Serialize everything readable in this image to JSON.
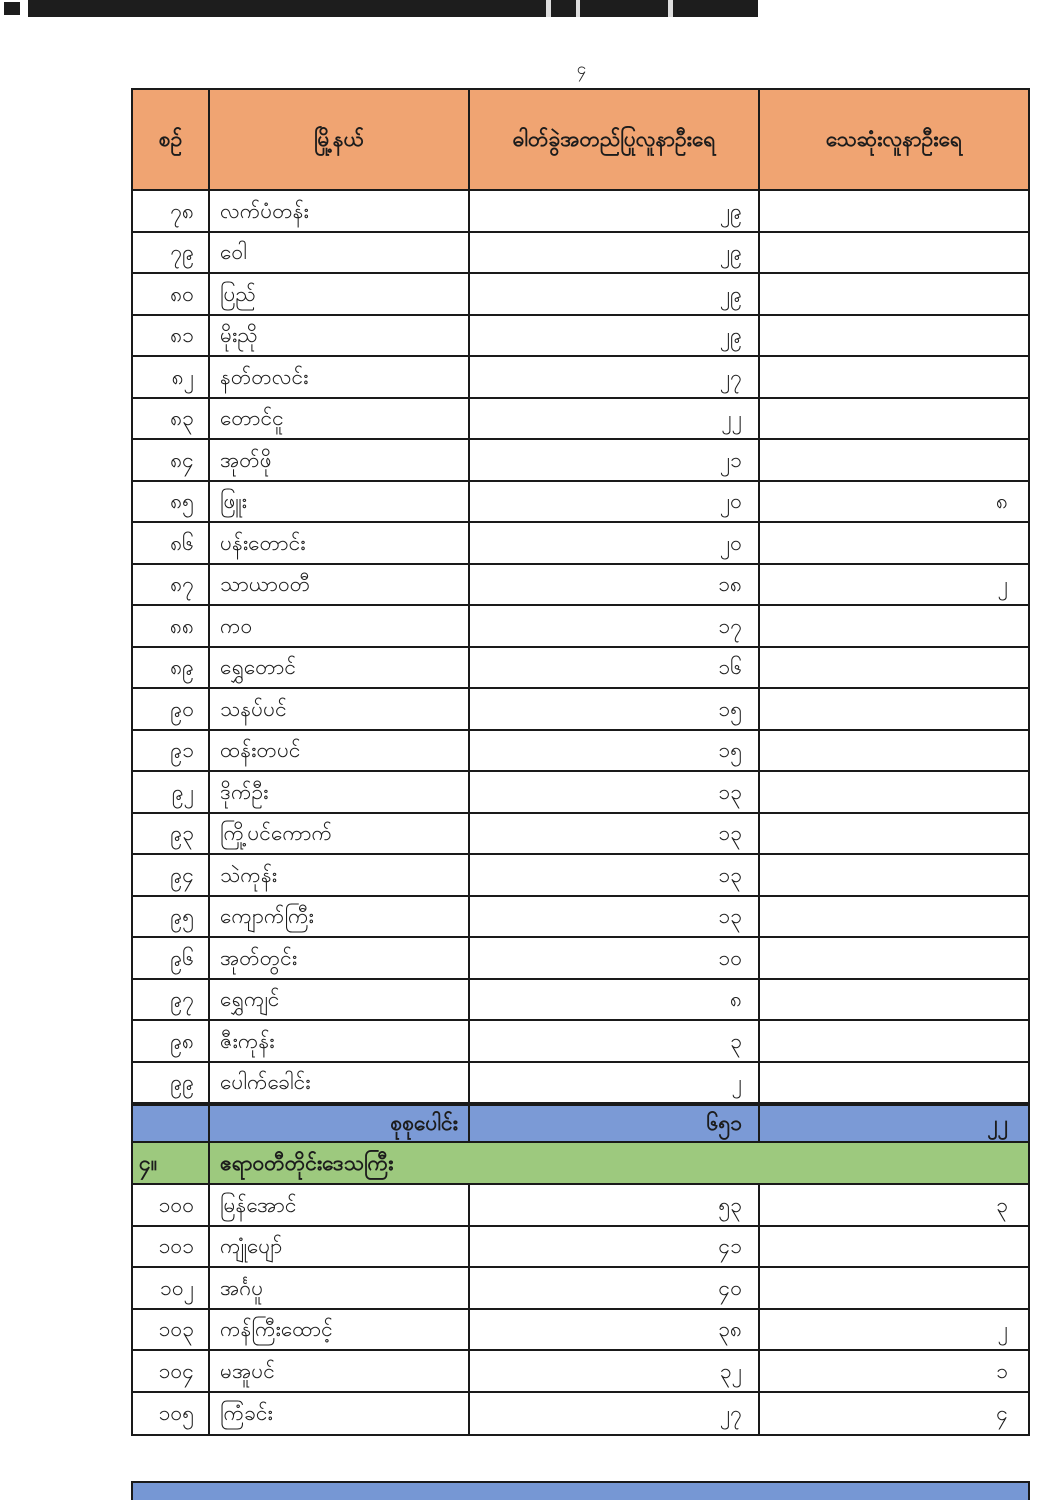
{
  "page": {
    "number": "၄"
  },
  "colors": {
    "header_bg": "#F0A472",
    "total_row_bg": "#7B9AD6",
    "region_row_bg": "#9DC97E",
    "bottom_strip_bg": "#7697D4",
    "top_bar_bg": "#1D1D1D",
    "border": "#1A1A1A"
  },
  "table": {
    "headers": [
      "စဉ်",
      "မြို့နယ်",
      "ဓါတ်ခွဲအတည်ပြုလူနာဦးရေ",
      "သေဆုံးလူနာဦးရေ"
    ],
    "rows": [
      {
        "no": "၇၈",
        "township": "လက်ပံတန်း",
        "confirmed": "၂၉",
        "deaths": ""
      },
      {
        "no": "၇၉",
        "township": "ဝေါ",
        "confirmed": "၂၉",
        "deaths": ""
      },
      {
        "no": "၈၀",
        "township": "ပြည်",
        "confirmed": "၂၉",
        "deaths": ""
      },
      {
        "no": "၈၁",
        "township": "မိုးညို",
        "confirmed": "၂၉",
        "deaths": ""
      },
      {
        "no": "၈၂",
        "township": "နတ်တလင်း",
        "confirmed": "၂၇",
        "deaths": ""
      },
      {
        "no": "၈၃",
        "township": "တောင်ငူ",
        "confirmed": "၂၂",
        "deaths": ""
      },
      {
        "no": "၈၄",
        "township": "အုတ်ဖို",
        "confirmed": "၂၁",
        "deaths": ""
      },
      {
        "no": "၈၅",
        "township": "ဖြူး",
        "confirmed": "၂၀",
        "deaths": "၈"
      },
      {
        "no": "၈၆",
        "township": "ပန်းတောင်း",
        "confirmed": "၂၀",
        "deaths": ""
      },
      {
        "no": "၈၇",
        "township": "သာယာဝတီ",
        "confirmed": "၁၈",
        "deaths": "၂"
      },
      {
        "no": "၈၈",
        "township": "ကဝ",
        "confirmed": "၁၇",
        "deaths": ""
      },
      {
        "no": "၈၉",
        "township": "ရွှေတောင်",
        "confirmed": "၁၆",
        "deaths": ""
      },
      {
        "no": "၉၀",
        "township": "သနပ်ပင်",
        "confirmed": "၁၅",
        "deaths": ""
      },
      {
        "no": "၉၁",
        "township": "ထန်းတပင်",
        "confirmed": "၁၅",
        "deaths": ""
      },
      {
        "no": "၉၂",
        "township": "ဒိုက်ဦး",
        "confirmed": "၁၃",
        "deaths": ""
      },
      {
        "no": "၉၃",
        "township": "ကြို့ပင်ကောက်",
        "confirmed": "၁၃",
        "deaths": ""
      },
      {
        "no": "၉၄",
        "township": "သဲကုန်း",
        "confirmed": "၁၃",
        "deaths": ""
      },
      {
        "no": "၉၅",
        "township": "ကျောက်ကြီး",
        "confirmed": "၁၃",
        "deaths": ""
      },
      {
        "no": "၉၆",
        "township": "အုတ်တွင်း",
        "confirmed": "၁၀",
        "deaths": ""
      },
      {
        "no": "၉၇",
        "township": "ရွှေကျင်",
        "confirmed": "၈",
        "deaths": ""
      },
      {
        "no": "၉၈",
        "township": "ဇီးကုန်း",
        "confirmed": "၃",
        "deaths": ""
      },
      {
        "no": "၉၉",
        "township": "ပေါက်ခေါင်း",
        "confirmed": "၂",
        "deaths": ""
      }
    ],
    "total_row": {
      "label": "စုစုပေါင်း",
      "confirmed": "၆၅၁",
      "deaths": "၂၂"
    },
    "region_row": {
      "no": "၄။",
      "name": "ဧရာဝတီတိုင်းဒေသကြီး"
    },
    "rows_after": [
      {
        "no": "၁၀၀",
        "township": "မြန်အောင်",
        "confirmed": "၅၃",
        "deaths": "၃"
      },
      {
        "no": "၁၀၁",
        "township": "ကျုံပျော်",
        "confirmed": "၄၁",
        "deaths": ""
      },
      {
        "no": "၁၀၂",
        "township": "အင်္ဂပူ",
        "confirmed": "၄၀",
        "deaths": ""
      },
      {
        "no": "၁၀၃",
        "township": "ကန်ကြီးထောင့်",
        "confirmed": "၃၈",
        "deaths": "၂"
      },
      {
        "no": "၁၀၄",
        "township": "မအူပင်",
        "confirmed": "၃၂",
        "deaths": "၁"
      },
      {
        "no": "၁၀၅",
        "township": "ကြံခင်း",
        "confirmed": "၂၇",
        "deaths": "၄"
      }
    ]
  }
}
